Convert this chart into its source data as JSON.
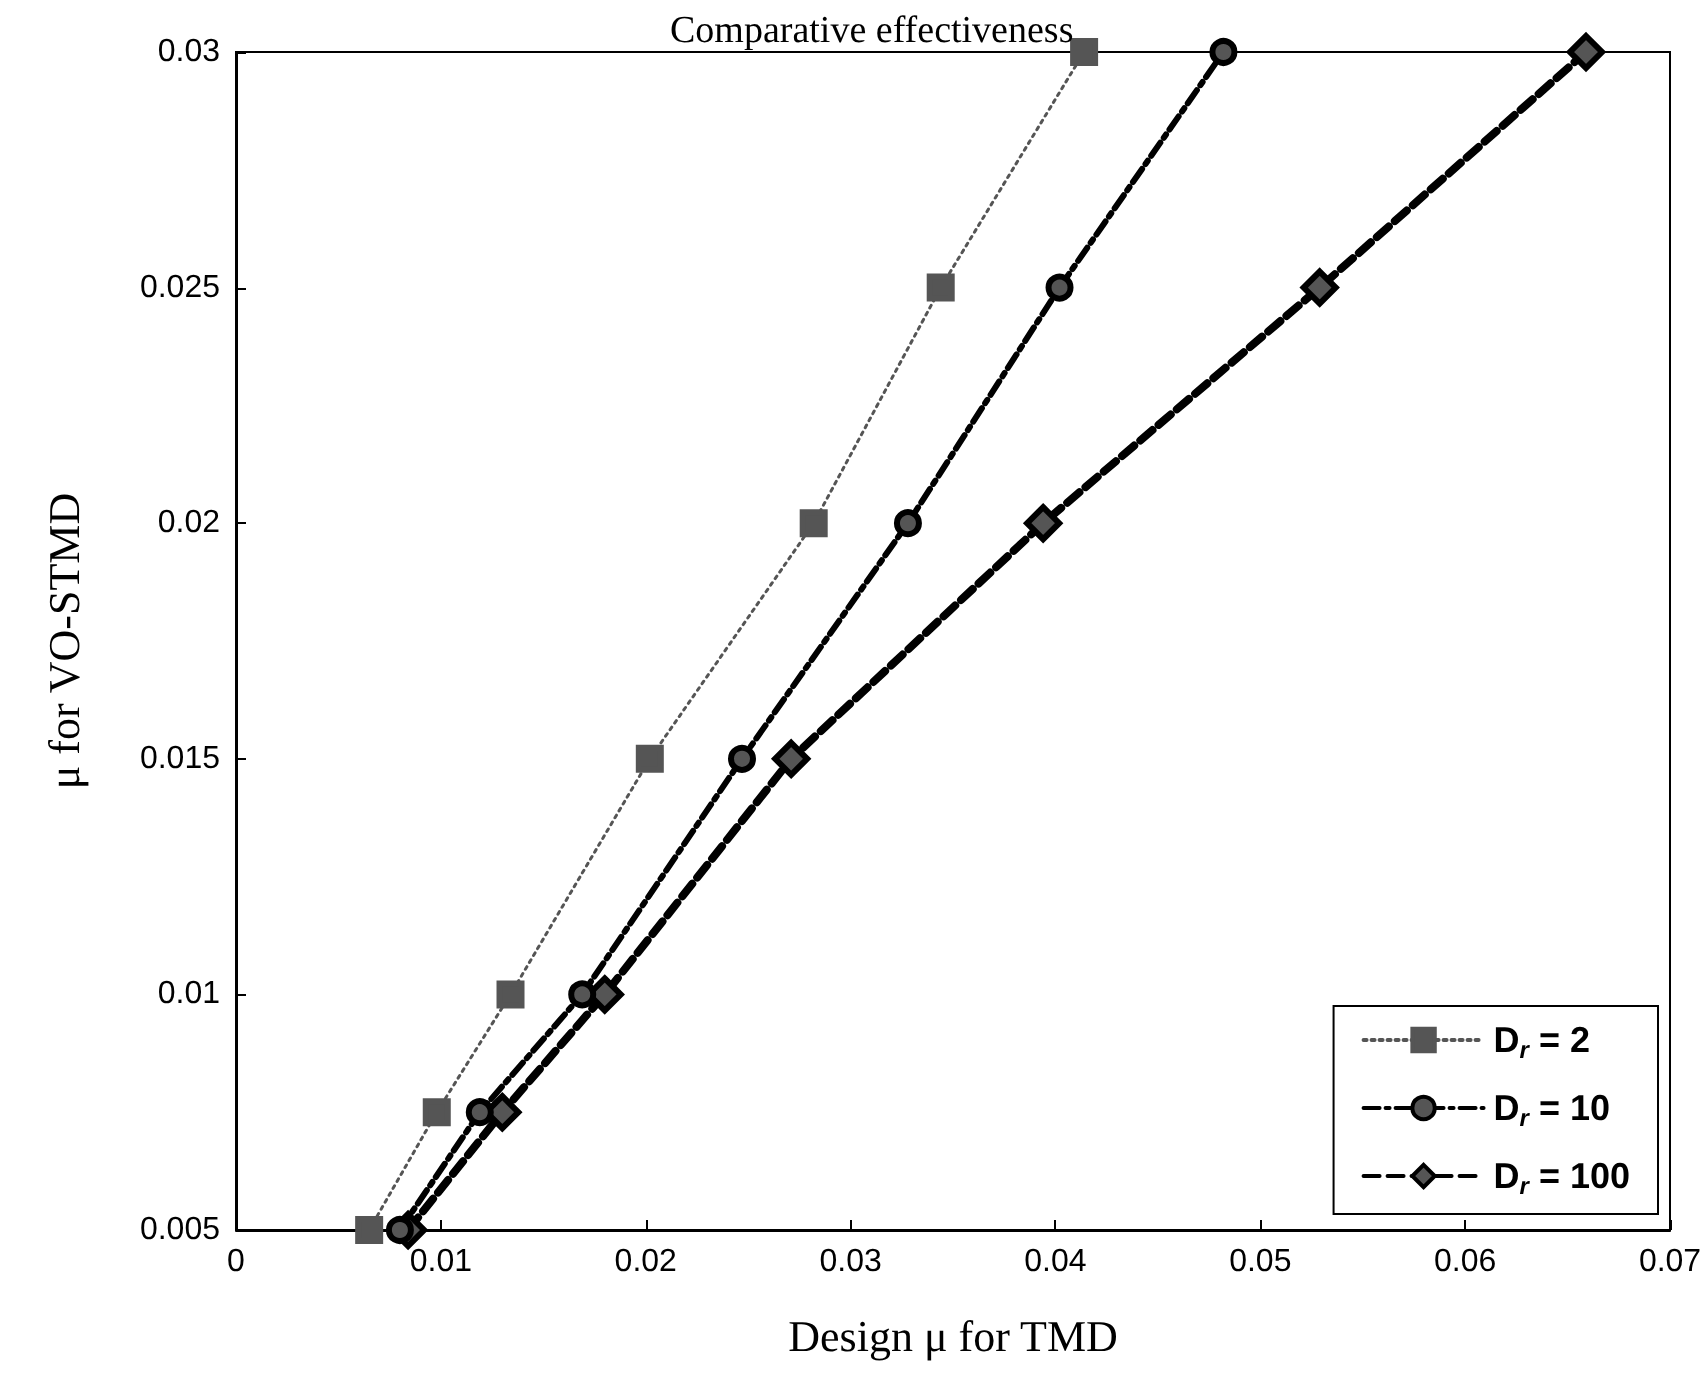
{
  "chart_data": {
    "type": "line",
    "title": "Comparative effectiveness",
    "xlabel": "Design μ for TMD",
    "ylabel": "μ for VO-STMD",
    "xlim": [
      0,
      0.07
    ],
    "xticks": [
      0,
      0.01,
      0.02,
      0.03,
      0.04,
      0.05,
      0.06,
      0.07
    ],
    "ylim": [
      0.005,
      0.03
    ],
    "yticks": [
      0.005,
      0.01,
      0.015,
      0.02,
      0.025,
      0.03
    ],
    "grid": false,
    "legend": "bottom right",
    "series": [
      {
        "name": "D$_{r}$ = 2",
        "color": "#555555",
        "marker": "square",
        "line_style": "dotted",
        "x": [
          0.0065,
          0.0098,
          0.0134,
          0.0202,
          0.0282,
          0.0344,
          0.0414
        ],
        "values": [
          0.005,
          0.0075,
          0.01,
          0.015,
          0.02,
          0.025,
          0.03
        ]
      },
      {
        "name": "D$_{r}$ = 10",
        "color": "#000000",
        "marker": "circle",
        "line_style": "dashdot",
        "x": [
          0.008,
          0.0119,
          0.0169,
          0.0247,
          0.0328,
          0.0402,
          0.0482
        ],
        "values": [
          0.005,
          0.0075,
          0.01,
          0.015,
          0.02,
          0.025,
          0.03
        ]
      },
      {
        "name": "D$_{r}$ = 100",
        "color": "#000000",
        "marker": "diamond",
        "line_style": "dashed",
        "x": [
          0.0084,
          0.013,
          0.018,
          0.0271,
          0.0394,
          0.0529,
          0.0659
        ],
        "values": [
          0.005,
          0.0075,
          0.01,
          0.015,
          0.02,
          0.025,
          0.03
        ]
      }
    ]
  }
}
